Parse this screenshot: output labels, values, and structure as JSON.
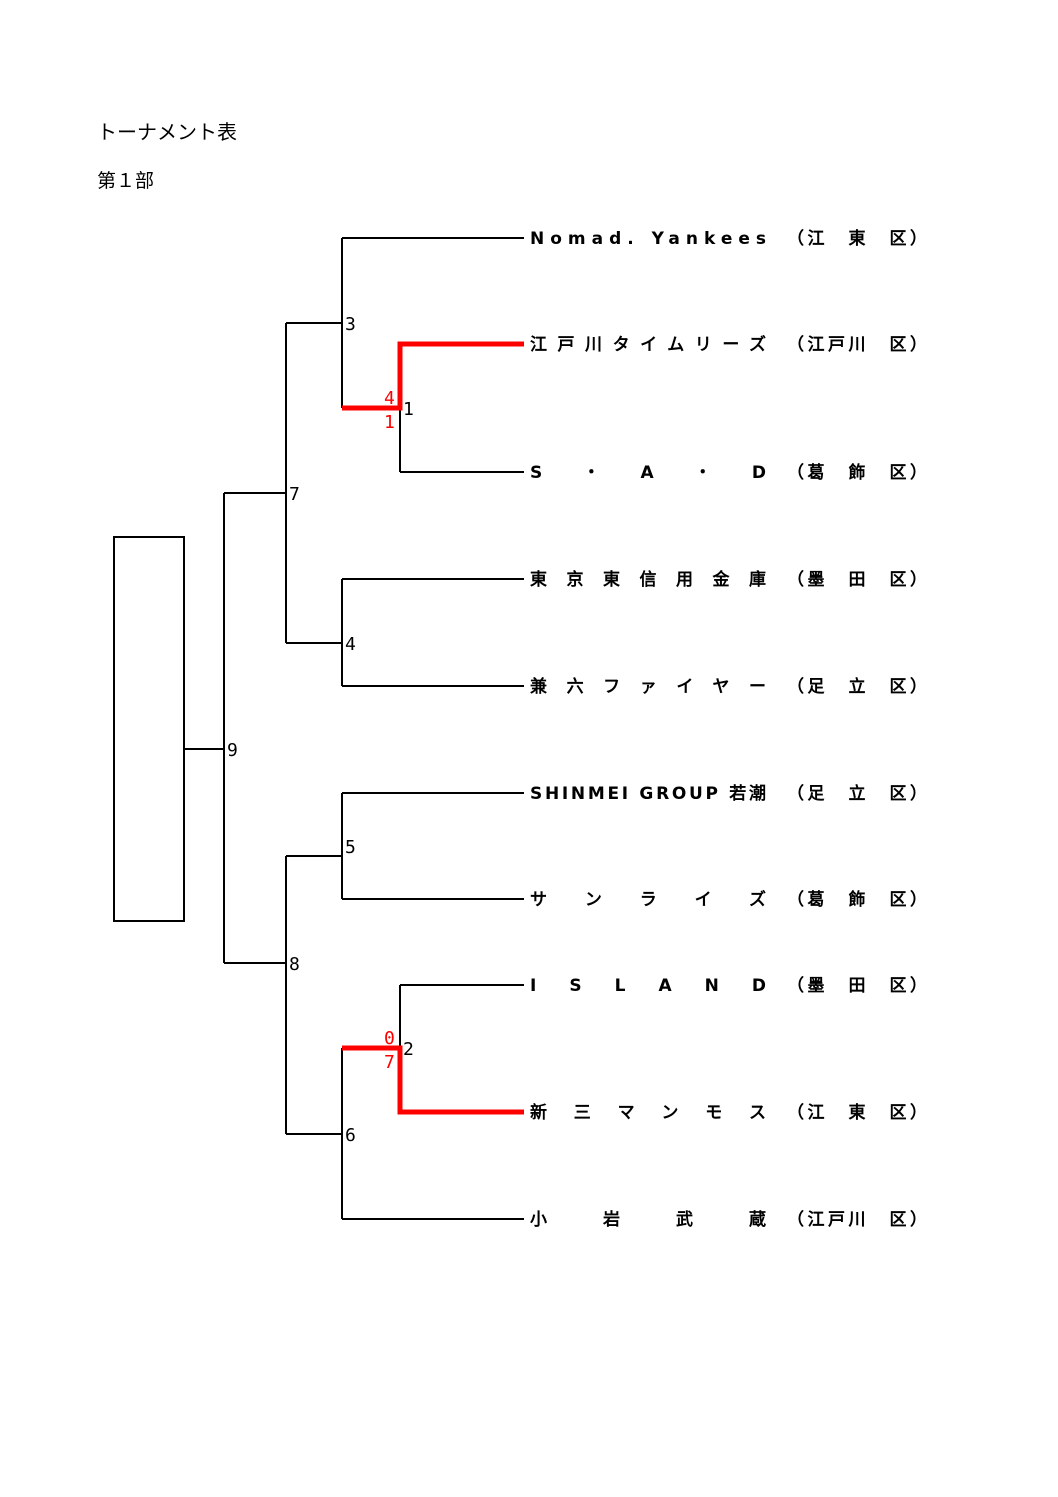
{
  "document": {
    "title": "トーナメント表",
    "division": "第１部"
  },
  "colors": {
    "line": "#000000",
    "winner": "#ff0000"
  },
  "teams": [
    {
      "name": "Nomad. Yankees",
      "district": "（江　東　区）"
    },
    {
      "name": "江戸川タイムリーズ",
      "district": "（江戸川　区）"
    },
    {
      "name": "S・A・D",
      "district": "（葛　飾　区）"
    },
    {
      "name": "東京東信用金庫",
      "district": "（墨　田　区）"
    },
    {
      "name": "兼六ファイヤー",
      "district": "（足　立　区）"
    },
    {
      "name": "SHINMEI GROUP 若潮",
      "district": "（足　立　区）"
    },
    {
      "name": "サンライズ",
      "district": "（葛　飾　区）"
    },
    {
      "name": "ISLAND",
      "district": "（墨　田　区）"
    },
    {
      "name": "新三マンモス",
      "district": "（江　東　区）"
    },
    {
      "name": "小岩武蔵",
      "district": "（江戸川　区）"
    }
  ],
  "matches": [
    {
      "number": "1",
      "score_top": "4",
      "score_bottom": "1",
      "winner": "江戸川タイムリーズ"
    },
    {
      "number": "2",
      "score_top": "0",
      "score_bottom": "7",
      "winner": "新三マンモス"
    },
    {
      "number": "3"
    },
    {
      "number": "4"
    },
    {
      "number": "5"
    },
    {
      "number": "6"
    },
    {
      "number": "7"
    },
    {
      "number": "8"
    },
    {
      "number": "9"
    }
  ]
}
